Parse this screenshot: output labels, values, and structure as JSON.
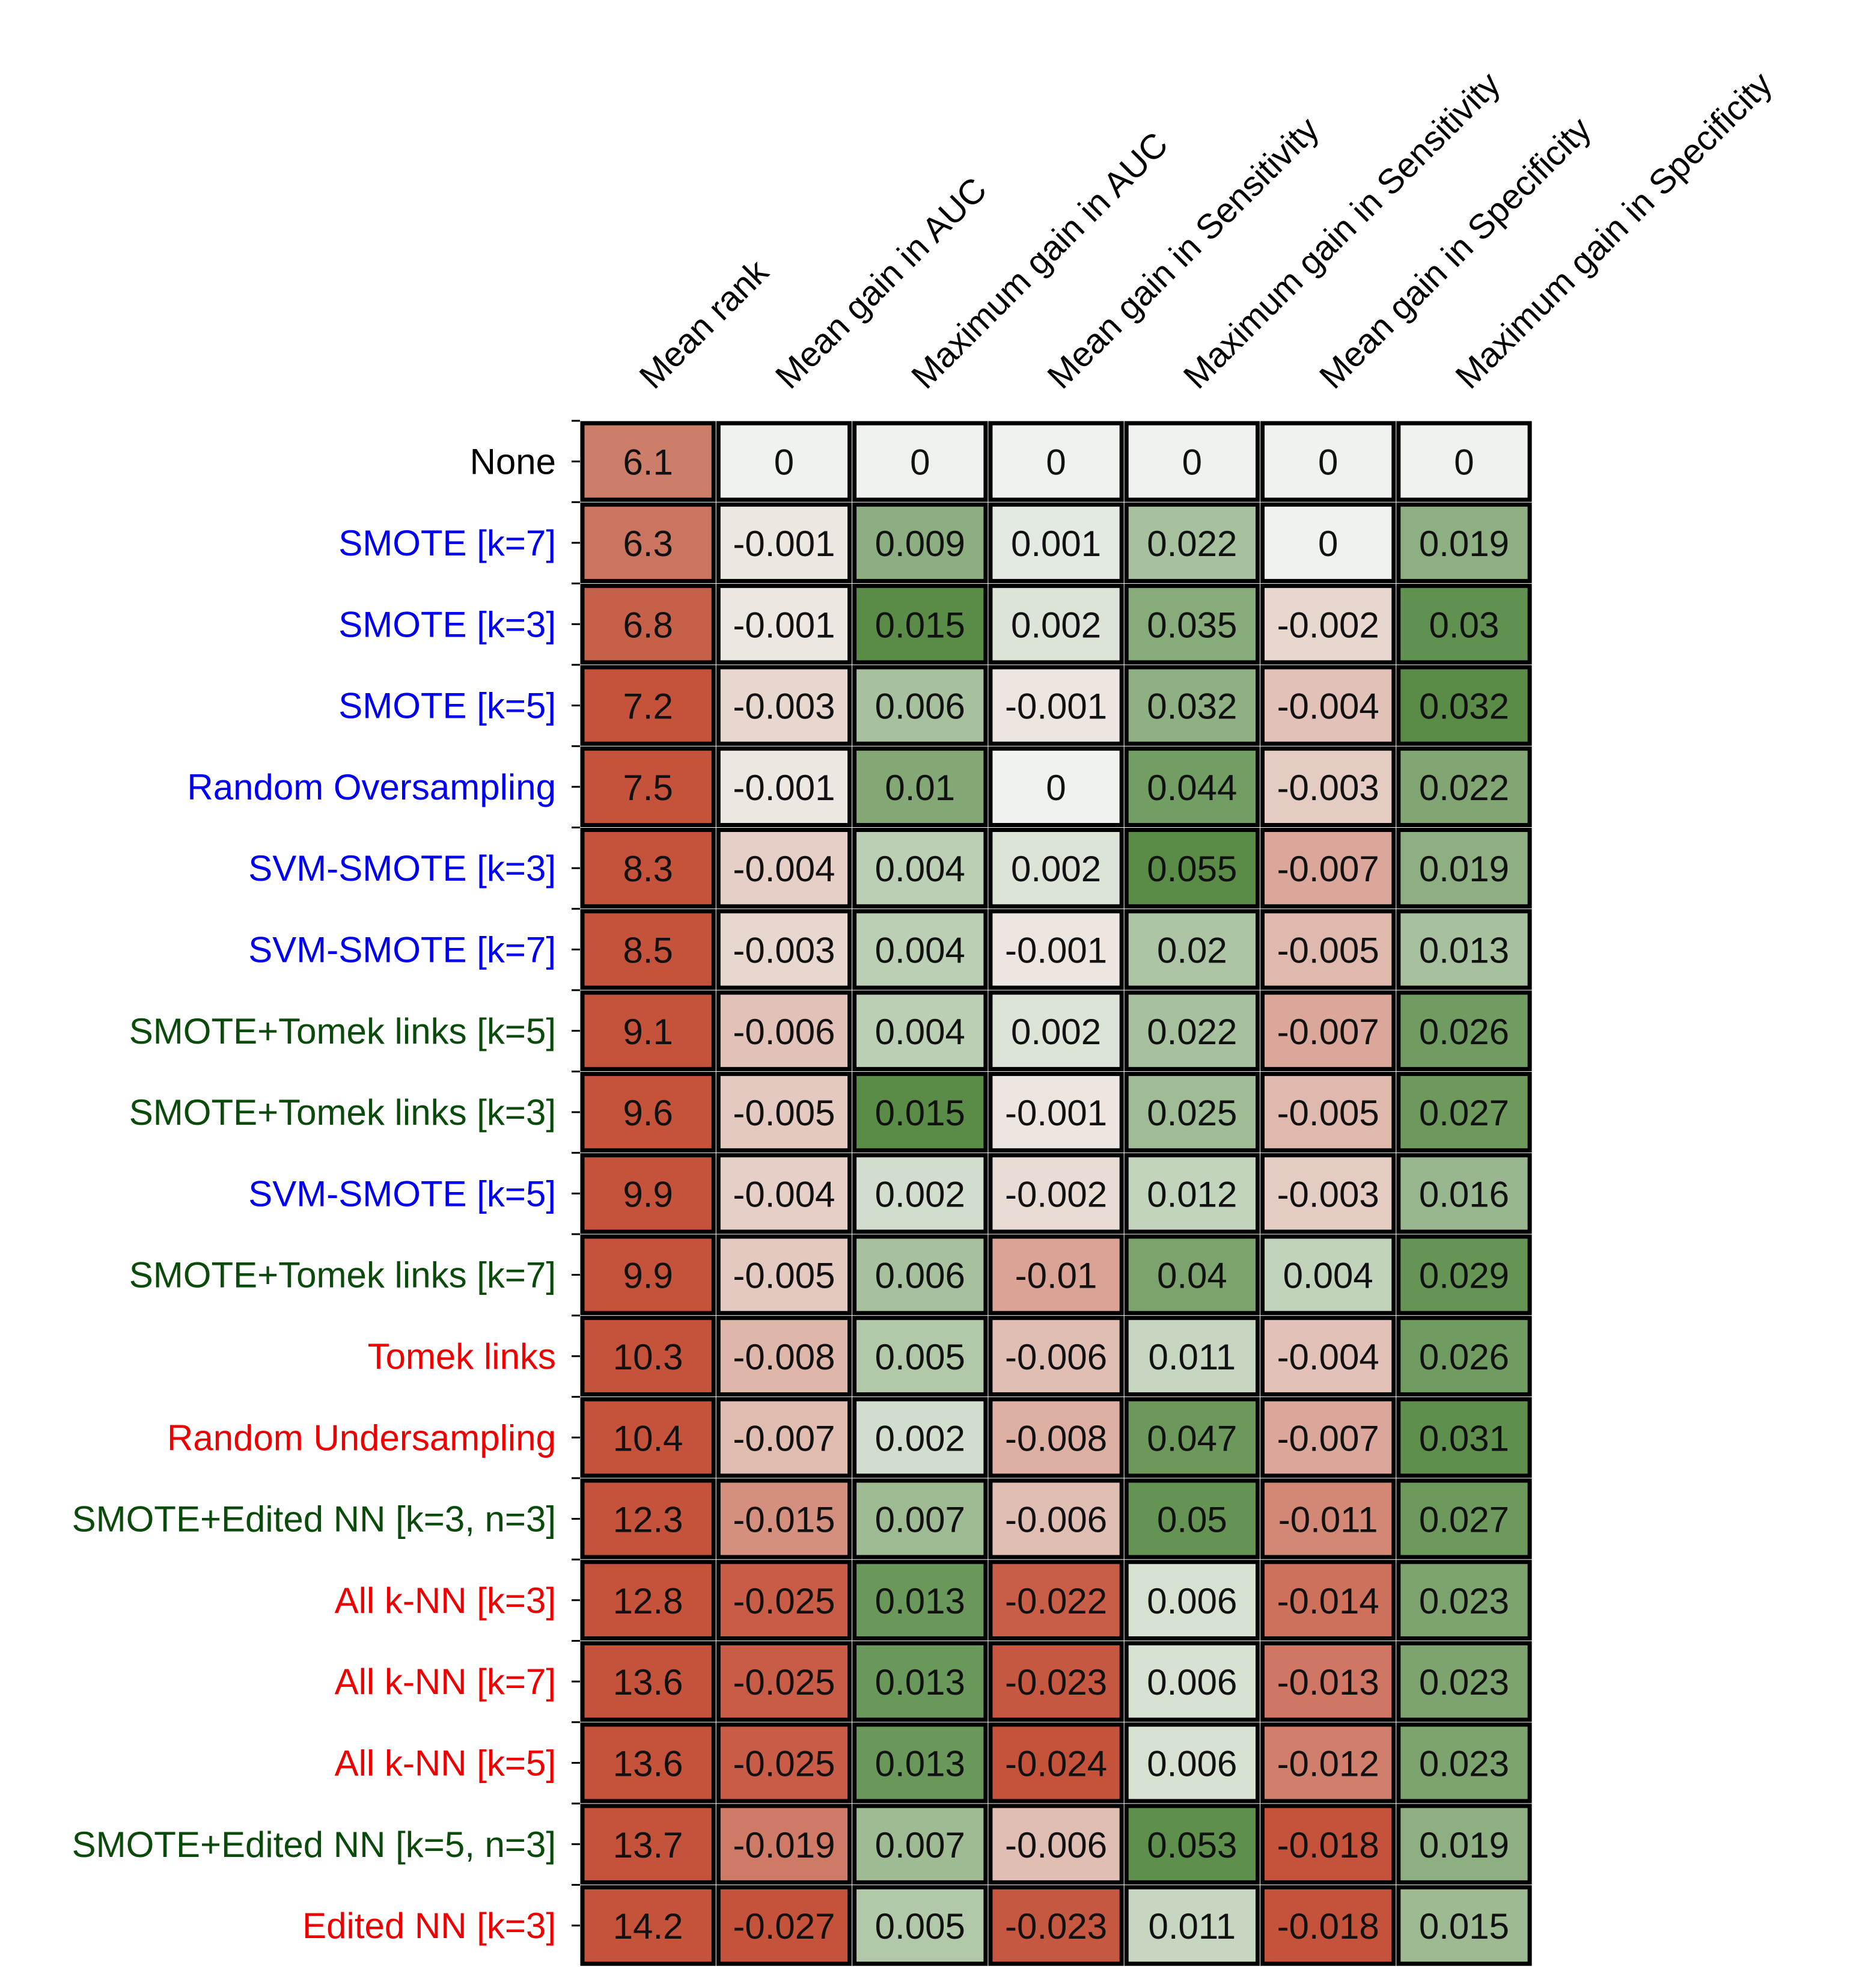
{
  "chart_data": {
    "type": "heatmap",
    "title": "",
    "xlabel": "",
    "ylabel": "",
    "columns": [
      "Mean rank",
      "Mean gain in AUC",
      "Maximum gain in AUC",
      "Mean gain in Sensitivity",
      "Maximum gain in Sensitivity",
      "Mean gain in Specificity",
      "Maximum gain in Specificity"
    ],
    "rows": [
      {
        "label": "None",
        "group": "none",
        "values": [
          "6.1",
          "0",
          "0",
          "0",
          "0",
          "0",
          "0"
        ]
      },
      {
        "label": "SMOTE [k=7]",
        "group": "oversampling",
        "values": [
          "6.3",
          "-0.001",
          "0.009",
          "0.001",
          "0.022",
          "0",
          "0.019"
        ]
      },
      {
        "label": "SMOTE [k=3]",
        "group": "oversampling",
        "values": [
          "6.8",
          "-0.001",
          "0.015",
          "0.002",
          "0.035",
          "-0.002",
          "0.03"
        ]
      },
      {
        "label": "SMOTE [k=5]",
        "group": "oversampling",
        "values": [
          "7.2",
          "-0.003",
          "0.006",
          "-0.001",
          "0.032",
          "-0.004",
          "0.032"
        ]
      },
      {
        "label": "Random Oversampling",
        "group": "oversampling",
        "values": [
          "7.5",
          "-0.001",
          "0.01",
          "0",
          "0.044",
          "-0.003",
          "0.022"
        ]
      },
      {
        "label": "SVM-SMOTE [k=3]",
        "group": "oversampling",
        "values": [
          "8.3",
          "-0.004",
          "0.004",
          "0.002",
          "0.055",
          "-0.007",
          "0.019"
        ]
      },
      {
        "label": "SVM-SMOTE [k=7]",
        "group": "oversampling",
        "values": [
          "8.5",
          "-0.003",
          "0.004",
          "-0.001",
          "0.02",
          "-0.005",
          "0.013"
        ]
      },
      {
        "label": "SMOTE+Tomek links [k=5]",
        "group": "combined",
        "values": [
          "9.1",
          "-0.006",
          "0.004",
          "0.002",
          "0.022",
          "-0.007",
          "0.026"
        ]
      },
      {
        "label": "SMOTE+Tomek links [k=3]",
        "group": "combined",
        "values": [
          "9.6",
          "-0.005",
          "0.015",
          "-0.001",
          "0.025",
          "-0.005",
          "0.027"
        ]
      },
      {
        "label": "SVM-SMOTE [k=5]",
        "group": "oversampling",
        "values": [
          "9.9",
          "-0.004",
          "0.002",
          "-0.002",
          "0.012",
          "-0.003",
          "0.016"
        ]
      },
      {
        "label": "SMOTE+Tomek links [k=7]",
        "group": "combined",
        "values": [
          "9.9",
          "-0.005",
          "0.006",
          "-0.01",
          "0.04",
          "0.004",
          "0.029"
        ]
      },
      {
        "label": "Tomek links",
        "group": "undersampling",
        "values": [
          "10.3",
          "-0.008",
          "0.005",
          "-0.006",
          "0.011",
          "-0.004",
          "0.026"
        ]
      },
      {
        "label": "Random Undersampling",
        "group": "undersampling",
        "values": [
          "10.4",
          "-0.007",
          "0.002",
          "-0.008",
          "0.047",
          "-0.007",
          "0.031"
        ]
      },
      {
        "label": "SMOTE+Edited NN [k=3, n=3]",
        "group": "combined",
        "values": [
          "12.3",
          "-0.015",
          "0.007",
          "-0.006",
          "0.05",
          "-0.011",
          "0.027"
        ]
      },
      {
        "label": "All k-NN [k=3]",
        "group": "undersampling",
        "values": [
          "12.8",
          "-0.025",
          "0.013",
          "-0.022",
          "0.006",
          "-0.014",
          "0.023"
        ]
      },
      {
        "label": "All k-NN [k=7]",
        "group": "undersampling",
        "values": [
          "13.6",
          "-0.025",
          "0.013",
          "-0.023",
          "0.006",
          "-0.013",
          "0.023"
        ]
      },
      {
        "label": "All k-NN [k=5]",
        "group": "undersampling",
        "values": [
          "13.6",
          "-0.025",
          "0.013",
          "-0.024",
          "0.006",
          "-0.012",
          "0.023"
        ]
      },
      {
        "label": "SMOTE+Edited NN [k=5, n=3]",
        "group": "combined",
        "values": [
          "13.7",
          "-0.019",
          "0.007",
          "-0.006",
          "0.053",
          "-0.018",
          "0.019"
        ]
      },
      {
        "label": "Edited NN [k=3]",
        "group": "undersampling",
        "values": [
          "14.2",
          "-0.027",
          "0.005",
          "-0.023",
          "0.011",
          "-0.018",
          "0.015"
        ]
      }
    ],
    "group_colors": {
      "none": "#000000",
      "oversampling": "#0000ee",
      "combined": "#0a4a0a",
      "undersampling": "#ee0000"
    },
    "colormap": {
      "negative": "#c5533b",
      "neutral": "#eff2ee",
      "positive": "#5a8c48",
      "rank_low": "#cc7e6b",
      "rank_high": "#c5533b"
    }
  }
}
